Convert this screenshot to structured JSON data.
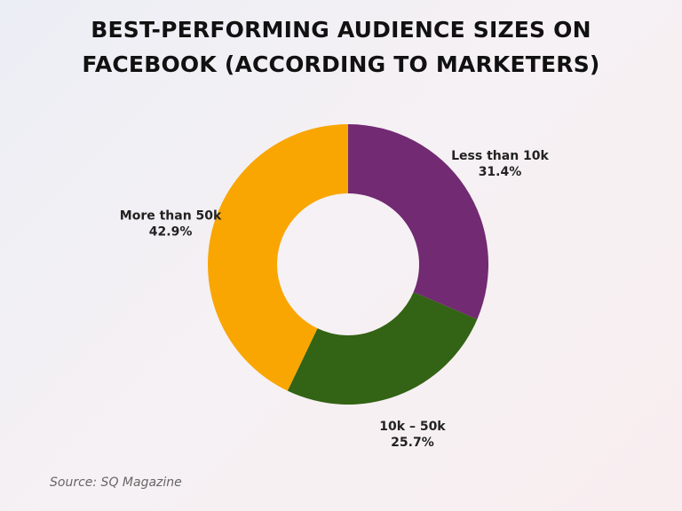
{
  "chart_data": {
    "type": "donut",
    "title": "BEST-PERFORMING AUDIENCE SIZES ON\nFACEBOOK (ACCORDING TO MARKETERS)",
    "categories": [
      "Less than 10k",
      "10k – 50k",
      "More than 50k"
    ],
    "values": [
      31.4,
      25.7,
      42.9
    ],
    "value_labels": [
      "31.4%",
      "25.7%",
      "42.9%"
    ],
    "colors": [
      "#722a72",
      "#336314",
      "#f9a602"
    ],
    "source": "Source: SQ Magazine"
  }
}
